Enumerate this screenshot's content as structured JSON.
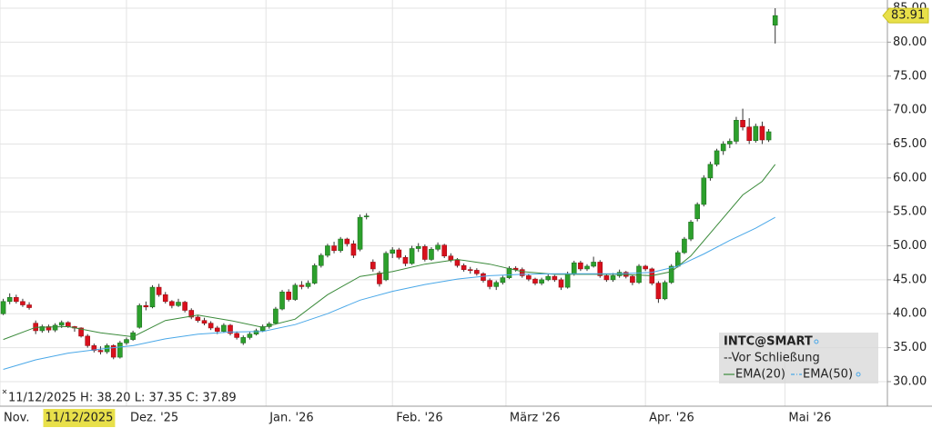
{
  "chart_data": {
    "type": "candlestick",
    "legend_note": "--Vor Schließung",
    "info": "11/12/2025 H: 38.20 L: 37.35 C: 37.89",
    "cursor": {
      "x": 11,
      "label": "11/12/2025"
    },
    "legend": "lower right",
    "grid": true,
    "up_color": "#2ca02c",
    "down_color": "#d9101c",
    "xlim": [
      -0.5,
      136.3
    ],
    "ylim": [
      26.38,
      86.21
    ],
    "xticks": [
      {
        "value": -0.5,
        "label": "Nov."
      },
      {
        "value": 19,
        "label": "Dez. '25"
      },
      {
        "value": 40.5,
        "label": "Jan. '26"
      },
      {
        "value": 60,
        "label": "Feb. '26"
      },
      {
        "value": 77.5,
        "label": "März '26"
      },
      {
        "value": 99,
        "label": "Apr. '26"
      },
      {
        "value": 120.5,
        "label": "Mai '26"
      }
    ],
    "yticks": [
      {
        "value": 30,
        "label": "30.00"
      },
      {
        "value": 35,
        "label": "35.00"
      },
      {
        "value": 40,
        "label": "40.00"
      },
      {
        "value": 45,
        "label": "45.00"
      },
      {
        "value": 50,
        "label": "50.00"
      },
      {
        "value": 55,
        "label": "55.00"
      },
      {
        "value": 60,
        "label": "60.00"
      },
      {
        "value": 65,
        "label": "65.00"
      },
      {
        "value": 70,
        "label": "70.00"
      },
      {
        "value": 75,
        "label": "75.00"
      },
      {
        "value": 80,
        "label": "80.00"
      },
      {
        "value": 85,
        "label": "85.00"
      }
    ],
    "series": [
      {
        "name": "INTC@SMART",
        "values": [
          [
            40.0,
            42.2,
            39.8,
            41.8
          ],
          [
            41.8,
            43.0,
            41.4,
            42.4
          ],
          [
            42.4,
            42.8,
            41.5,
            41.8
          ],
          [
            41.8,
            42.2,
            41.0,
            41.3
          ],
          [
            41.3,
            41.7,
            40.6,
            40.9
          ],
          [
            38.6,
            39.0,
            37.0,
            37.5
          ],
          [
            37.5,
            38.4,
            37.2,
            38.1
          ],
          [
            38.1,
            38.4,
            37.2,
            37.6
          ],
          [
            37.6,
            38.6,
            37.3,
            38.3
          ],
          [
            38.3,
            39.0,
            37.9,
            38.7
          ],
          [
            38.7,
            38.9,
            37.9,
            38.1
          ],
          [
            38.1,
            38.2,
            37.35,
            37.89
          ],
          [
            37.9,
            38.0,
            36.5,
            36.7
          ],
          [
            36.7,
            37.0,
            35.0,
            35.3
          ],
          [
            35.3,
            35.6,
            34.3,
            34.6
          ],
          [
            34.6,
            35.2,
            34.0,
            34.4
          ],
          [
            34.4,
            35.6,
            34.1,
            35.3
          ],
          [
            35.3,
            35.5,
            33.3,
            33.6
          ],
          [
            33.6,
            36.0,
            33.4,
            35.7
          ],
          [
            35.7,
            36.5,
            35.4,
            36.2
          ],
          [
            36.2,
            37.5,
            36.0,
            37.2
          ],
          [
            38.0,
            41.5,
            37.8,
            41.2
          ],
          [
            41.2,
            41.8,
            40.5,
            41.0
          ],
          [
            41.0,
            44.2,
            40.8,
            43.9
          ],
          [
            43.9,
            44.4,
            42.5,
            42.8
          ],
          [
            42.8,
            43.2,
            41.5,
            41.8
          ],
          [
            41.8,
            42.0,
            40.8,
            41.2
          ],
          [
            41.2,
            42.2,
            41.0,
            41.7
          ],
          [
            41.7,
            41.9,
            40.2,
            40.5
          ],
          [
            40.5,
            40.8,
            39.2,
            39.5
          ],
          [
            39.5,
            39.8,
            38.7,
            39.0
          ],
          [
            39.0,
            39.4,
            38.3,
            38.6
          ],
          [
            38.6,
            38.9,
            37.6,
            37.9
          ],
          [
            37.9,
            38.2,
            37.0,
            37.4
          ],
          [
            37.4,
            38.6,
            37.2,
            38.3
          ],
          [
            38.3,
            38.5,
            36.8,
            37.1
          ],
          [
            37.1,
            37.4,
            36.2,
            36.5
          ],
          [
            35.7,
            36.8,
            35.4,
            36.5
          ],
          [
            36.5,
            37.3,
            36.2,
            37.0
          ],
          [
            37.0,
            37.8,
            36.8,
            37.5
          ],
          [
            37.5,
            38.4,
            37.3,
            38.1
          ],
          [
            38.1,
            38.8,
            37.8,
            38.5
          ],
          [
            38.6,
            41.0,
            38.4,
            40.7
          ],
          [
            40.7,
            43.5,
            40.5,
            43.2
          ],
          [
            43.2,
            43.6,
            41.8,
            42.1
          ],
          [
            42.1,
            44.5,
            41.9,
            44.2
          ],
          [
            44.2,
            44.8,
            43.6,
            44.0
          ],
          [
            44.0,
            44.9,
            43.7,
            44.5
          ],
          [
            44.5,
            47.4,
            44.3,
            47.1
          ],
          [
            47.1,
            48.9,
            46.8,
            48.6
          ],
          [
            48.6,
            50.3,
            48.3,
            50.0
          ],
          [
            50.0,
            50.6,
            48.9,
            49.3
          ],
          [
            49.3,
            51.3,
            49.0,
            51.0
          ],
          [
            51.0,
            51.2,
            49.9,
            50.3
          ],
          [
            50.3,
            50.8,
            48.2,
            48.6
          ],
          [
            49.5,
            54.6,
            49.2,
            54.2
          ],
          [
            54.3,
            54.8,
            53.9,
            54.4
          ],
          [
            47.6,
            48.0,
            46.2,
            46.6
          ],
          [
            46.0,
            46.3,
            44.0,
            44.4
          ],
          [
            45.0,
            49.2,
            44.8,
            48.9
          ],
          [
            48.9,
            49.8,
            48.2,
            49.4
          ],
          [
            49.4,
            49.7,
            48.0,
            48.3
          ],
          [
            48.3,
            48.6,
            47.0,
            47.4
          ],
          [
            47.4,
            50.0,
            47.2,
            49.6
          ],
          [
            49.6,
            50.4,
            49.1,
            49.9
          ],
          [
            49.9,
            50.2,
            47.7,
            48.0
          ],
          [
            48.0,
            49.8,
            47.8,
            49.5
          ],
          [
            49.5,
            50.5,
            49.2,
            50.1
          ],
          [
            50.1,
            50.3,
            48.2,
            48.5
          ],
          [
            48.5,
            48.9,
            47.6,
            47.9
          ],
          [
            47.9,
            48.2,
            46.8,
            47.1
          ],
          [
            47.1,
            47.4,
            46.2,
            46.5
          ],
          [
            46.5,
            46.9,
            45.9,
            46.4
          ],
          [
            46.4,
            46.7,
            45.6,
            45.9
          ],
          [
            45.9,
            46.1,
            44.6,
            44.9
          ],
          [
            44.9,
            45.2,
            43.6,
            44.0
          ],
          [
            44.0,
            44.9,
            43.5,
            44.6
          ],
          [
            44.6,
            45.6,
            44.3,
            45.3
          ],
          [
            45.3,
            47.0,
            45.1,
            46.7
          ],
          [
            46.7,
            47.0,
            46.2,
            46.5
          ],
          [
            46.5,
            46.8,
            45.3,
            45.6
          ],
          [
            45.6,
            45.9,
            44.8,
            45.1
          ],
          [
            45.1,
            45.3,
            44.2,
            44.5
          ],
          [
            44.5,
            45.3,
            44.2,
            45.0
          ],
          [
            45.0,
            45.8,
            44.8,
            45.5
          ],
          [
            45.5,
            45.7,
            44.7,
            45.0
          ],
          [
            45.0,
            45.3,
            43.5,
            43.9
          ],
          [
            43.9,
            46.2,
            43.7,
            45.9
          ],
          [
            45.9,
            47.8,
            45.6,
            47.5
          ],
          [
            47.5,
            47.8,
            46.3,
            46.6
          ],
          [
            46.6,
            47.3,
            46.3,
            47.0
          ],
          [
            47.0,
            48.4,
            46.8,
            47.6
          ],
          [
            47.6,
            47.9,
            45.3,
            45.6
          ],
          [
            45.6,
            45.9,
            44.7,
            45.0
          ],
          [
            45.0,
            46.0,
            44.7,
            45.6
          ],
          [
            45.6,
            46.5,
            45.3,
            46.1
          ],
          [
            46.1,
            46.3,
            45.2,
            45.5
          ],
          [
            45.5,
            45.7,
            44.2,
            44.6
          ],
          [
            44.6,
            47.3,
            44.4,
            47.0
          ],
          [
            47.0,
            47.2,
            46.3,
            46.6
          ],
          [
            46.6,
            46.8,
            44.2,
            44.5
          ],
          [
            44.5,
            44.8,
            41.6,
            42.2
          ],
          [
            42.2,
            44.9,
            42.0,
            44.6
          ],
          [
            44.6,
            47.3,
            44.4,
            47.0
          ],
          [
            47.0,
            49.3,
            46.8,
            49.0
          ],
          [
            49.0,
            51.3,
            48.8,
            51.0
          ],
          [
            51.0,
            53.8,
            50.7,
            53.5
          ],
          [
            54.0,
            56.4,
            53.6,
            56.1
          ],
          [
            56.1,
            60.4,
            55.8,
            60.0
          ],
          [
            60.0,
            62.4,
            59.6,
            62.0
          ],
          [
            62.0,
            64.3,
            61.7,
            64.0
          ],
          [
            64.0,
            65.4,
            63.4,
            65.0
          ],
          [
            65.0,
            65.8,
            64.4,
            65.4
          ],
          [
            65.4,
            69.0,
            65.0,
            68.5
          ],
          [
            68.5,
            70.2,
            67.0,
            67.5
          ],
          [
            67.5,
            68.8,
            65.0,
            65.5
          ],
          [
            65.5,
            68.0,
            65.2,
            67.6
          ],
          [
            67.6,
            68.3,
            65.0,
            65.6
          ],
          [
            65.6,
            67.2,
            65.3,
            66.8
          ],
          [
            82.5,
            85.0,
            79.8,
            83.91
          ]
        ]
      },
      {
        "name": "EMA(20)",
        "color": "#3a8a3a",
        "x": [
          0,
          5,
          10,
          15,
          20,
          25,
          30,
          35,
          40,
          45,
          50,
          55,
          60,
          65,
          70,
          75,
          80,
          85,
          90,
          95,
          100,
          103,
          106,
          110,
          114,
          117,
          119
        ],
        "values": [
          36.2,
          38.0,
          38.1,
          37.2,
          36.6,
          39.0,
          39.8,
          39.0,
          38.0,
          39.2,
          42.8,
          45.5,
          46.2,
          47.3,
          48.0,
          47.3,
          46.2,
          45.8,
          45.8,
          45.8,
          45.6,
          46.2,
          48.5,
          53.0,
          57.5,
          59.5,
          62.0
        ]
      },
      {
        "name": "EMA(50)",
        "color": "#4aa8e8",
        "x": [
          0,
          5,
          10,
          15,
          20,
          25,
          30,
          35,
          40,
          45,
          50,
          55,
          60,
          65,
          70,
          75,
          80,
          85,
          90,
          95,
          100,
          104,
          108,
          112,
          116,
          119
        ],
        "values": [
          31.8,
          33.2,
          34.2,
          34.8,
          35.3,
          36.3,
          37.0,
          37.3,
          37.4,
          38.4,
          40.0,
          42.0,
          43.3,
          44.3,
          45.1,
          45.6,
          45.8,
          45.9,
          45.9,
          45.9,
          46.1,
          47.0,
          48.8,
          50.8,
          52.6,
          54.2
        ]
      }
    ]
  }
}
